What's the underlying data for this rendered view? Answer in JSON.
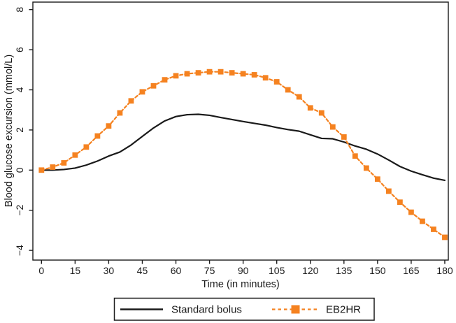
{
  "chart_data": {
    "type": "line",
    "title": "",
    "xlabel": "Time (in minutes)",
    "ylabel": "Blood glucose excursion (mmol/L)",
    "grid": false,
    "legend_position": "bottom-center-outside",
    "xlim": [
      -4,
      182
    ],
    "ylim": [
      -4.5,
      8.4
    ],
    "x_tick_values": [
      0,
      15,
      30,
      45,
      60,
      75,
      90,
      105,
      120,
      135,
      150,
      165,
      180
    ],
    "x_tick_labels": [
      "0",
      "15",
      "30",
      "45",
      "60",
      "75",
      "90",
      "105",
      "120",
      "135",
      "150",
      "165",
      "180"
    ],
    "y_tick_values": [
      8,
      6,
      4,
      2,
      0,
      -2,
      -4
    ],
    "y_tick_labels": [
      "8",
      "6",
      "4",
      "2",
      "0",
      "−2",
      "−4"
    ],
    "x": [
      0,
      5,
      10,
      15,
      20,
      25,
      30,
      35,
      40,
      45,
      50,
      55,
      60,
      65,
      70,
      75,
      80,
      85,
      90,
      95,
      100,
      105,
      110,
      115,
      120,
      125,
      130,
      135,
      140,
      145,
      150,
      155,
      160,
      165,
      170,
      175,
      180
    ],
    "series": [
      {
        "name": "Standard bolus",
        "color": "#1a1a1a",
        "line_style": "solid",
        "marker": "none",
        "values": [
          0.0,
          0.0,
          0.03,
          0.1,
          0.25,
          0.45,
          0.7,
          0.9,
          1.25,
          1.68,
          2.1,
          2.45,
          2.67,
          2.76,
          2.78,
          2.73,
          2.62,
          2.52,
          2.42,
          2.33,
          2.24,
          2.12,
          2.02,
          1.94,
          1.76,
          1.58,
          1.56,
          1.4,
          1.2,
          1.04,
          0.8,
          0.5,
          0.18,
          -0.05,
          -0.23,
          -0.4,
          -0.51
        ]
      },
      {
        "name": "EB2HR",
        "color": "#F58220",
        "line_style": "dashed",
        "marker": "square",
        "values": [
          0.0,
          0.15,
          0.36,
          0.75,
          1.15,
          1.7,
          2.2,
          2.85,
          3.45,
          3.9,
          4.2,
          4.5,
          4.7,
          4.8,
          4.85,
          4.9,
          4.9,
          4.85,
          4.8,
          4.75,
          4.6,
          4.4,
          4.0,
          3.65,
          3.1,
          2.85,
          2.15,
          1.65,
          0.7,
          0.1,
          -0.45,
          -1.05,
          -1.6,
          -2.1,
          -2.55,
          -2.95,
          -3.35
        ]
      }
    ]
  }
}
